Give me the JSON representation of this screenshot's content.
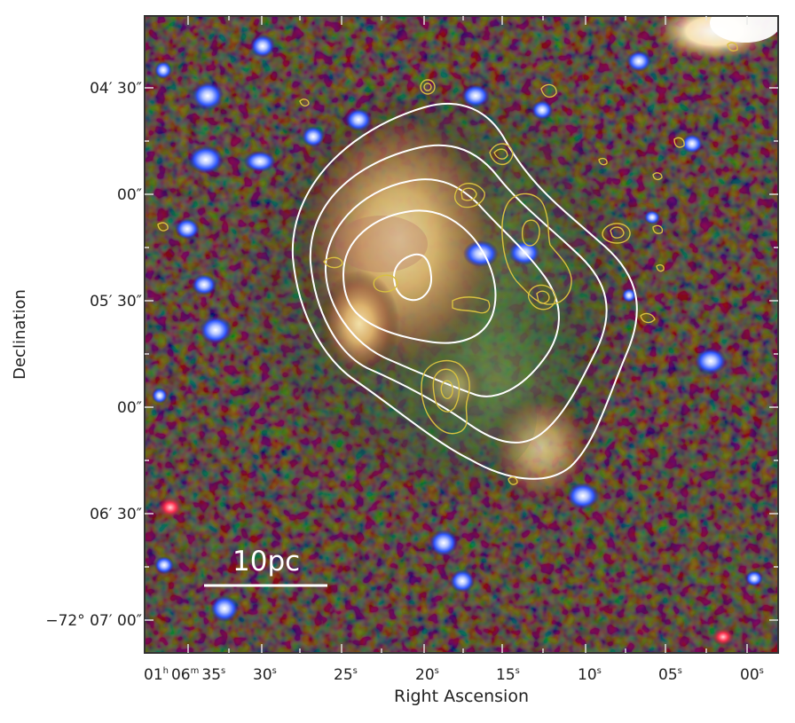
{
  "figure": {
    "x_axis_title": "Right Ascension",
    "y_axis_title": "Declination",
    "scale_bar_label": "10pc",
    "ra_ticks": [
      {
        "hms": "01",
        "h": "h",
        "m": "06",
        "mu": "m",
        "s": "35",
        "su": "s"
      },
      {
        "s": "30",
        "su": "s"
      },
      {
        "s": "25",
        "su": "s"
      },
      {
        "s": "20",
        "su": "s"
      },
      {
        "s": "15",
        "su": "s"
      },
      {
        "s": "10",
        "su": "s"
      },
      {
        "s": "05",
        "su": "s"
      },
      {
        "s": "00",
        "su": "s"
      }
    ],
    "dec_ticks": [
      "04′ 30″",
      "00″",
      "05′ 30″",
      "00″",
      "06′ 30″",
      "−72° 07′ 00″"
    ],
    "colors": {
      "radio_contours": "#ffffff",
      "optical_contours": "#d8c040",
      "frame": "#333333",
      "tick": "#e8e8e8"
    }
  }
}
